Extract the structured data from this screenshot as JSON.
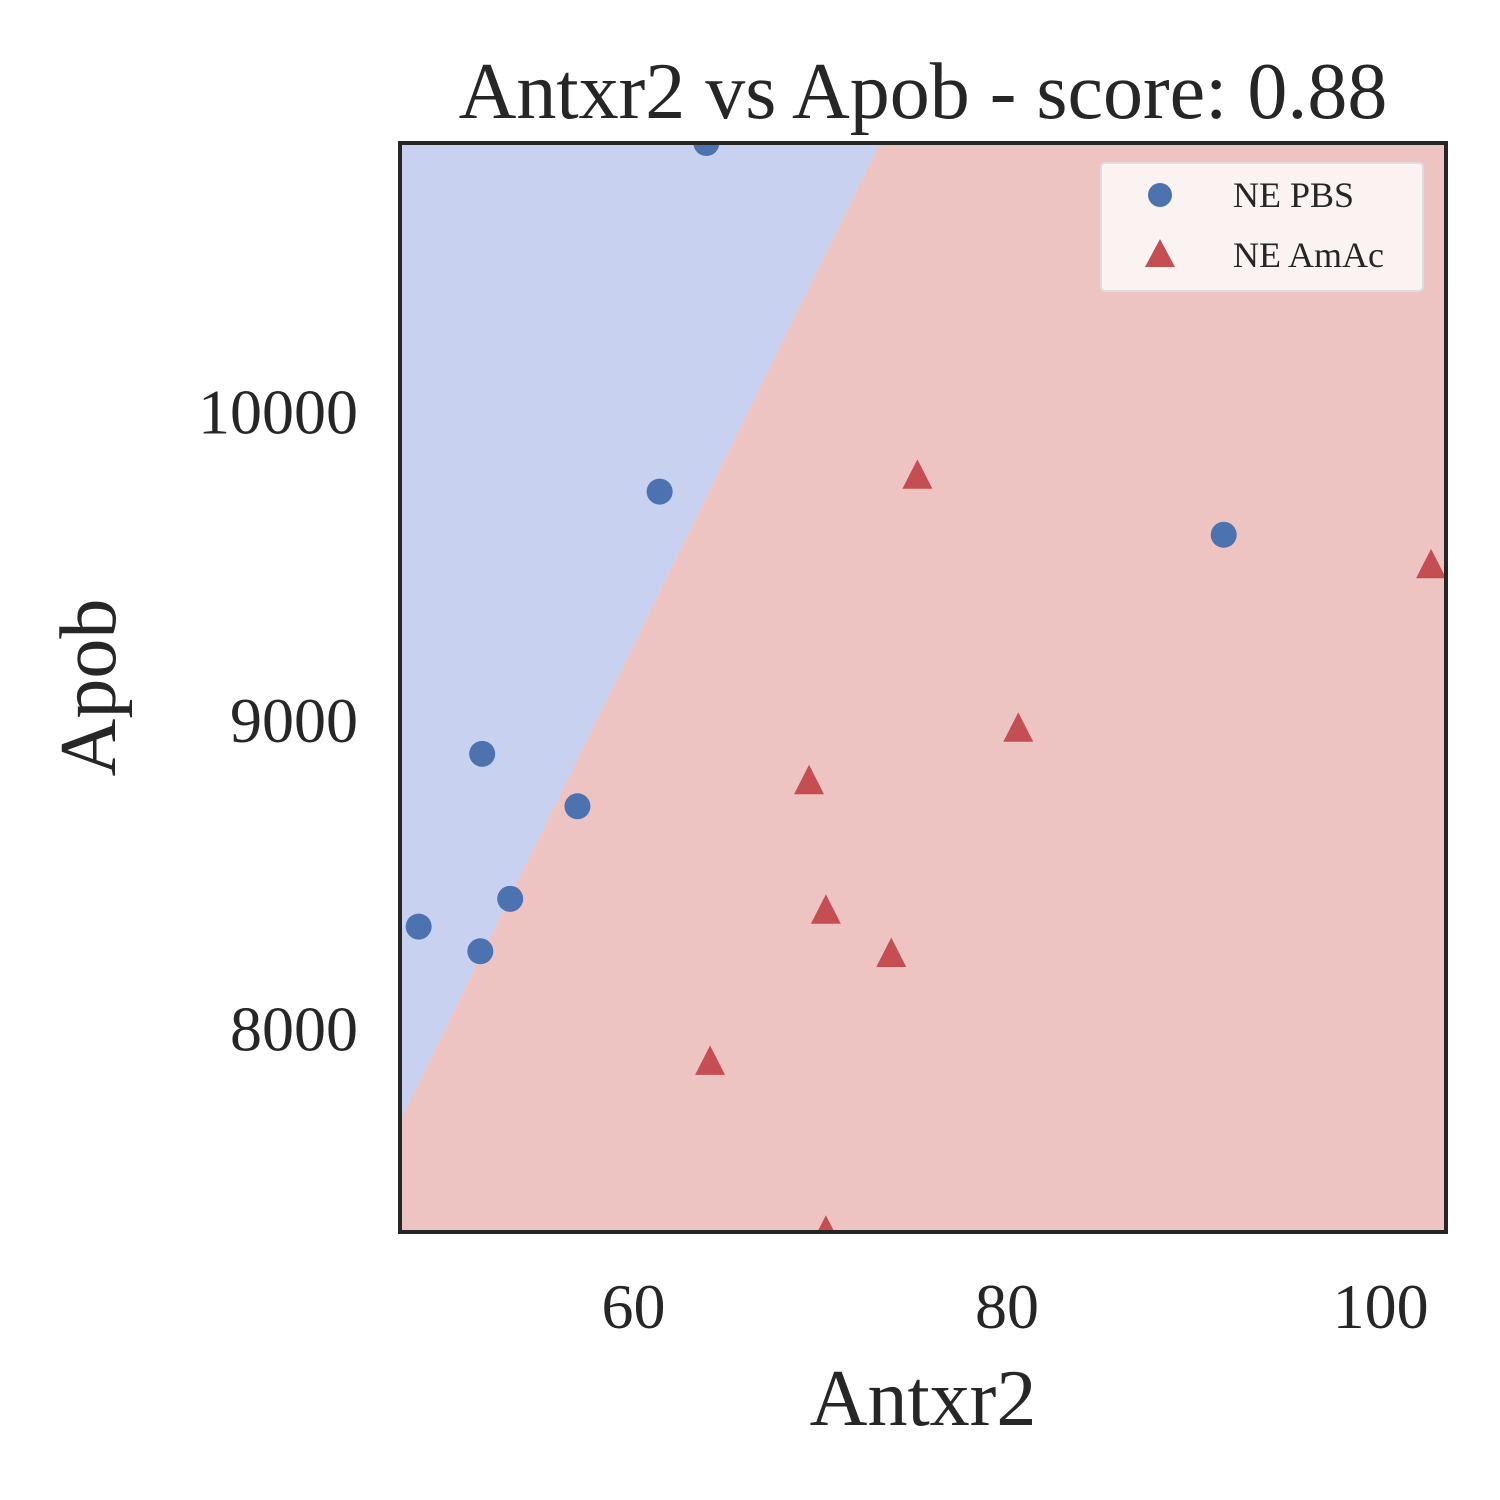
{
  "chart_data": {
    "type": "scatter",
    "title": "Antxr2 vs Apob - score: 0.88",
    "xlabel": "Antxr2",
    "ylabel": "Apob",
    "xlim": [
      47.5,
      103.5
    ],
    "ylim": [
      7340,
      10870
    ],
    "xticks": [
      60,
      80,
      100
    ],
    "xtick_labels": [
      "60",
      "80",
      "100"
    ],
    "yticks": [
      8000,
      9000,
      10000
    ],
    "ytick_labels": [
      "8000",
      "9000",
      "10000"
    ],
    "grid": false,
    "legend_position": "top-right",
    "decision_boundary": {
      "points": [
        [
          47.5,
          7700
        ],
        [
          73.2,
          10870
        ]
      ],
      "left_region_class": "NE PBS",
      "right_region_class": "NE AmAc",
      "left_region_color": "#c8d2f0",
      "right_region_color": "#eec4c3"
    },
    "series": [
      {
        "name": "NE PBS",
        "marker": "circle",
        "color": "#4c72b0",
        "points": [
          [
            63.9,
            10870
          ],
          [
            61.4,
            9740
          ],
          [
            91.6,
            9600
          ],
          [
            51.9,
            8890
          ],
          [
            57.0,
            8720
          ],
          [
            53.4,
            8420
          ],
          [
            48.5,
            8330
          ],
          [
            51.8,
            8250
          ]
        ]
      },
      {
        "name": "NE AmAc",
        "marker": "triangle",
        "color": "#c44e52",
        "points": [
          [
            75.2,
            9790
          ],
          [
            102.7,
            9500
          ],
          [
            80.6,
            8970
          ],
          [
            69.4,
            8800
          ],
          [
            70.3,
            8380
          ],
          [
            73.8,
            8240
          ],
          [
            64.1,
            7890
          ],
          [
            70.3,
            7340
          ]
        ]
      }
    ]
  }
}
